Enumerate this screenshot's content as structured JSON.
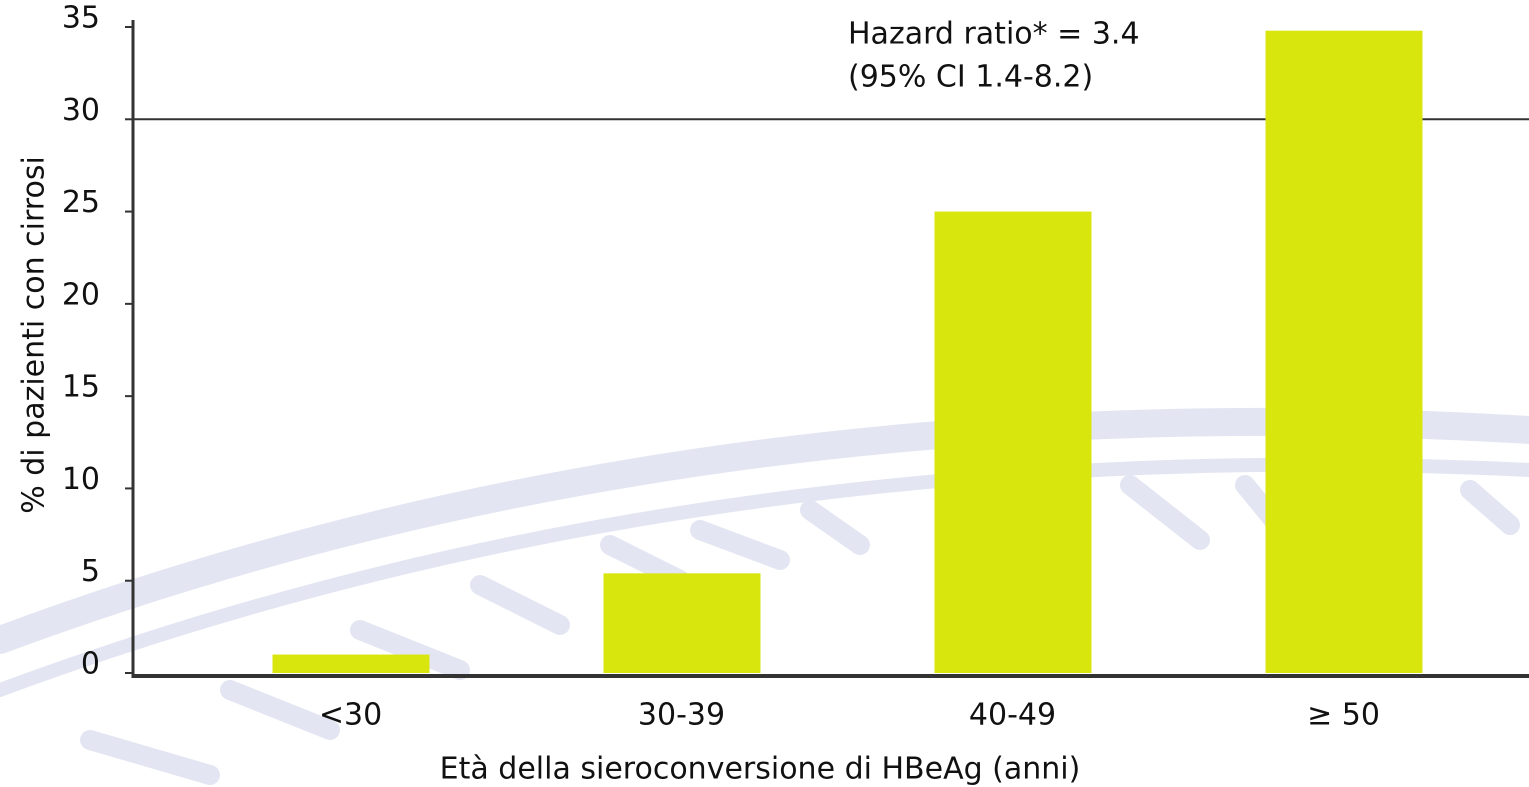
{
  "chart_data": {
    "type": "bar",
    "categories": [
      "<30",
      "30-39",
      "40-49",
      "≥ 50"
    ],
    "values": [
      1.0,
      5.4,
      25.0,
      34.8
    ],
    "color": "#d8e60d",
    "ylim": [
      0,
      35
    ],
    "yticks": [
      0,
      5,
      10,
      15,
      20,
      25,
      30,
      35
    ],
    "reference_line": 30,
    "xlabel": "Età della sieroconversione di HBeAg (anni)",
    "ylabel": "% di pazienti con cirrosi",
    "annotations": [
      "Hazard ratio* = 3.4",
      "(95% CI 1.4-8.2)"
    ]
  }
}
